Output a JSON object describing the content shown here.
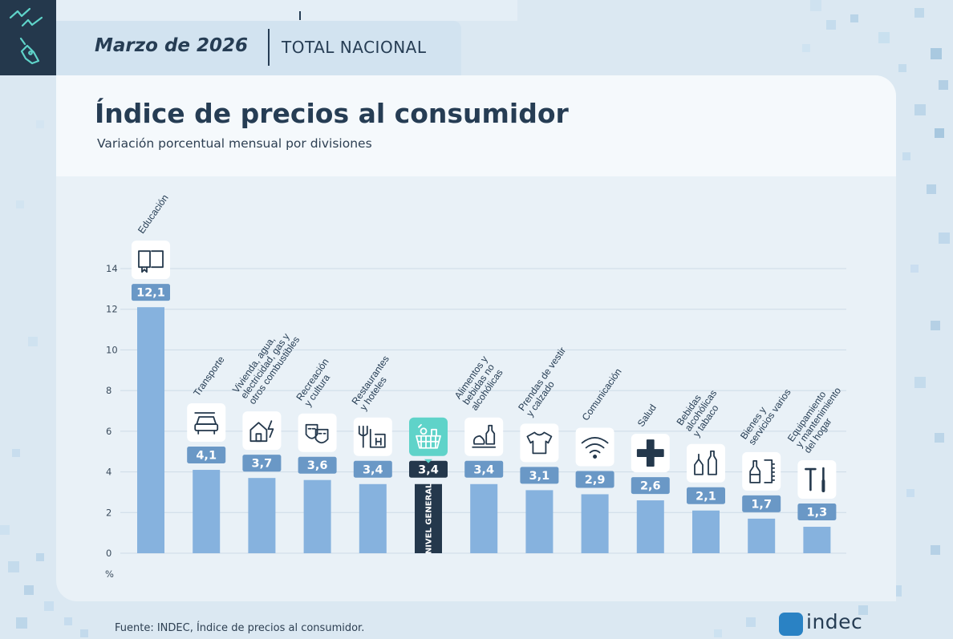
{
  "header": {
    "date": "Marzo de 2026",
    "region": "TOTAL NACIONAL"
  },
  "colors": {
    "navy": "#24384c",
    "bar": "#86b2de",
    "bar_highlight": "#24384c",
    "label_box": "#6a98c6",
    "highlight_icon_bg": "#5fd3c9",
    "accent_teal": "#5fd3c9"
  },
  "chart_data": {
    "type": "bar",
    "title": "Índice de precios al consumidor",
    "subtitle": "Variación porcentual mensual por divisiones",
    "ylabel": "%",
    "ylim": [
      0,
      14
    ],
    "yticks": [
      0,
      2,
      4,
      6,
      8,
      10,
      12,
      14
    ],
    "grid": true,
    "categories": [
      "Educación",
      "Transporte",
      "Vivienda, agua, electricidad, gas y otros combustibles",
      "Recreación y cultura",
      "Restaurantes y hoteles",
      "NIVEL GENERAL",
      "Alimentos y bebidas no alcohólicas",
      "Prendas de vestir y calzado",
      "Comunicación",
      "Salud",
      "Bebidas alcohólicas y tabaco",
      "Bienes y servicios varios",
      "Equipamiento y mantenimiento del hogar"
    ],
    "category_label_lines": [
      [
        "Educación"
      ],
      [
        "Transporte"
      ],
      [
        "Vivienda, agua,",
        "electricidad, gas y",
        "otros combustibles"
      ],
      [
        "Recreación",
        "y cultura"
      ],
      [
        "Restaurantes",
        "y hoteles"
      ],
      [],
      [
        "Alimentos y",
        "bebidas no",
        "alcohólicas"
      ],
      [
        "Prendas de vestir",
        "y calzado"
      ],
      [
        "Comunicación"
      ],
      [
        "Salud"
      ],
      [
        "Bebidas",
        "alcohólicas",
        "y tabaco"
      ],
      [
        "Bienes y",
        "servicios varios"
      ],
      [
        "Equipamiento",
        "y mantenimiento",
        "del hogar"
      ]
    ],
    "values": [
      12.1,
      4.1,
      3.7,
      3.6,
      3.4,
      3.4,
      3.4,
      3.1,
      2.9,
      2.6,
      2.1,
      1.7,
      1.3
    ],
    "value_labels": [
      "12,1",
      "4,1",
      "3,7",
      "3,6",
      "3,4",
      "3,4",
      "3,4",
      "3,1",
      "2,9",
      "2,6",
      "2,1",
      "1,7",
      "1,3"
    ],
    "icons": [
      "book-icon",
      "car-icon",
      "house-bolt-icon",
      "theater-masks-icon",
      "fork-hotel-icon",
      "shopping-basket-icon",
      "food-bottle-icon",
      "shirt-icon",
      "wifi-icon",
      "plus-icon",
      "bottles-icon",
      "bottle-comb-icon",
      "tools-icon"
    ],
    "highlight_index": 5,
    "highlight_bar_text": "NIVEL GENERAL"
  },
  "footer": {
    "source": "Fuente: INDEC, Índice de precios al consumidor.",
    "logo": "indec"
  }
}
